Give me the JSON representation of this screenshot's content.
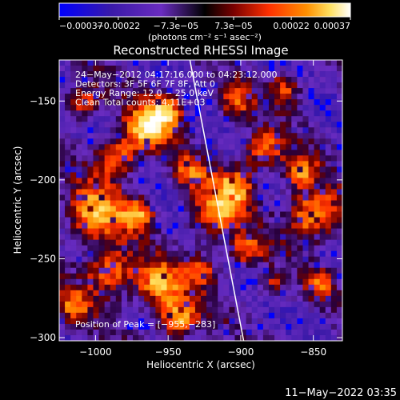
{
  "chart_data": {
    "type": "heatmap",
    "title": "Reconstructed RHESSI Image",
    "xlabel": "Heliocentric X (arcsec)",
    "ylabel": "Heliocentric Y (arcsec)",
    "xlim": [
      -1025,
      -830
    ],
    "ylim": [
      -302,
      -124
    ],
    "x_ticks": [
      -1000,
      -950,
      -900,
      -850
    ],
    "x_tick_labels": [
      "−1000",
      "−950",
      "−900",
      "−850"
    ],
    "y_ticks": [
      -300,
      -250,
      -200,
      -150
    ],
    "y_tick_labels": [
      "−300",
      "−250",
      "−200",
      "−150"
    ],
    "colorbar": {
      "range": [
        -0.00037,
        0.00037
      ],
      "tick_labels": [
        "−0.00037",
        "−0.00022",
        "−7.3e−05",
        "7.3e−05",
        "0.00022",
        "0.00037"
      ],
      "units_label": "(photons cm⁻² s⁻¹ asec⁻²)",
      "colormap": [
        "#0000ff",
        "#4b1fb0",
        "#6a2cc0",
        "#000000",
        "#7a0000",
        "#ff3000",
        "#ff9000",
        "#ffe060",
        "#ffffff"
      ]
    },
    "annotations": [
      "24−May−2012 04:17:16.000 to 04:23:12.000",
      "Detectors: 3F 5F 6F 7F 8F, Att 0",
      "Energy Range: 12.0 − 25.0 keV",
      "Clean     Total counts: 4.11E+03"
    ],
    "peak_label": "Position of Peak = [−955,−283]",
    "peak_position": [
      -955,
      -283
    ],
    "limb_line": [
      [
        -935,
        -124
      ],
      [
        -898,
        -302
      ]
    ],
    "colors": {
      "background": "#000000",
      "foreground": "#ffffff",
      "limb": "#ffffff"
    }
  },
  "footer": {
    "timestamp": "11−May−2022 03:35"
  }
}
